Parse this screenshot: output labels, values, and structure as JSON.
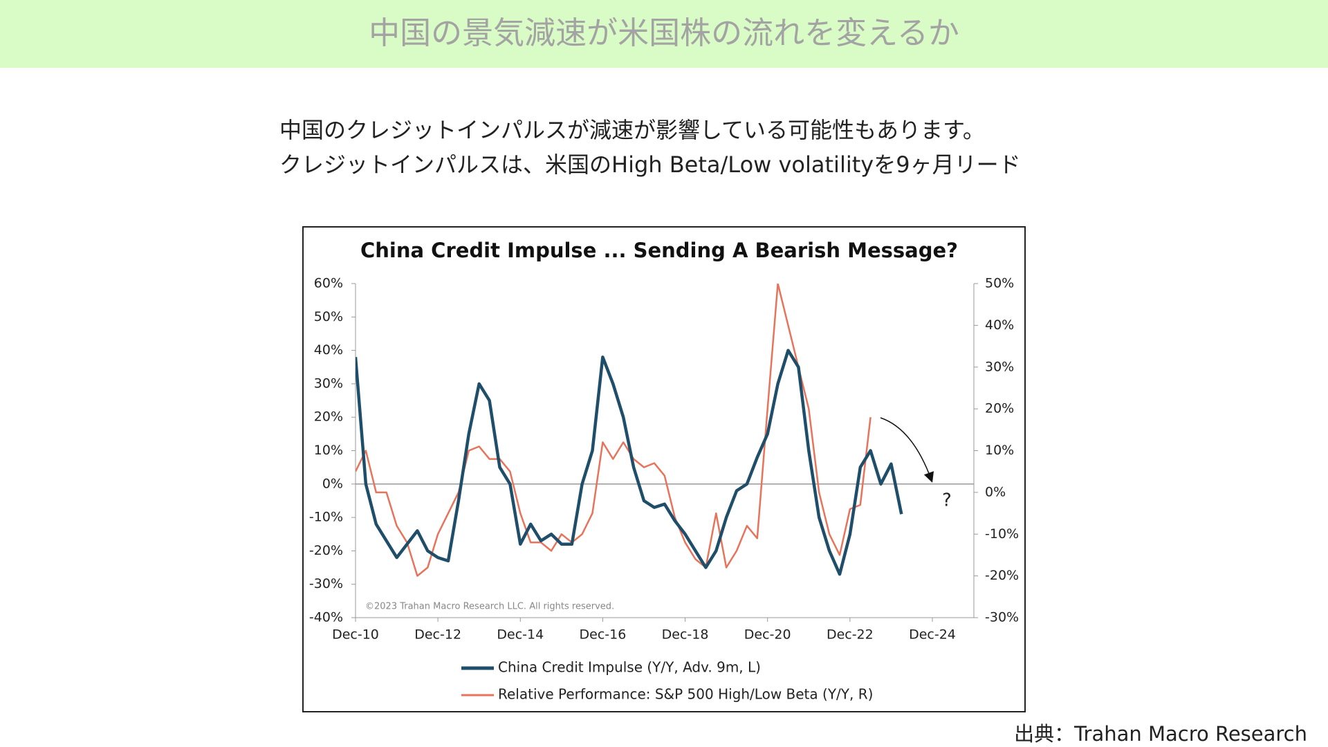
{
  "slide_title": "中国の景気減速が米国株の流れを変えるか",
  "description": [
    "中国のクレジットインパルスが減速が影響している可能性もあります。",
    "クレジットインパルスは、米国のHigh Beta/Low volatilityを9ヶ月リード"
  ],
  "source": "出典：Trahan Macro Research",
  "chart_data": {
    "type": "line",
    "title": "China Credit Impulse ... Sending A Bearish Message?",
    "annotations": [
      "©2023 Trahan Macro Research LLC. All rights reserved.",
      "?"
    ],
    "categories": [
      "Dec-10",
      "Mar-11",
      "Jun-11",
      "Sep-11",
      "Dec-11",
      "Mar-12",
      "Jun-12",
      "Sep-12",
      "Dec-12",
      "Mar-13",
      "Jun-13",
      "Sep-13",
      "Dec-13",
      "Mar-14",
      "Jun-14",
      "Sep-14",
      "Dec-14",
      "Mar-15",
      "Jun-15",
      "Sep-15",
      "Dec-15",
      "Mar-16",
      "Jun-16",
      "Sep-16",
      "Dec-16",
      "Mar-17",
      "Jun-17",
      "Sep-17",
      "Dec-17",
      "Mar-18",
      "Jun-18",
      "Sep-18",
      "Dec-18",
      "Mar-19",
      "Jun-19",
      "Sep-19",
      "Dec-19",
      "Mar-20",
      "Jun-20",
      "Sep-20",
      "Dec-20",
      "Mar-21",
      "Jun-21",
      "Sep-21",
      "Dec-21",
      "Mar-22",
      "Jun-22",
      "Sep-22",
      "Dec-22",
      "Mar-23",
      "Jun-23",
      "Sep-23",
      "Dec-23",
      "Mar-24",
      "Jun-24",
      "Sep-24",
      "Dec-24"
    ],
    "xticks": [
      "Dec-10",
      "Dec-12",
      "Dec-14",
      "Dec-16",
      "Dec-18",
      "Dec-20",
      "Dec-22",
      "Dec-24"
    ],
    "ylim": [
      -40,
      60
    ],
    "yticks": [
      {
        "value": -40,
        "label": "-40%"
      },
      {
        "value": -30,
        "label": "-30%"
      },
      {
        "value": -20,
        "label": "-20%"
      },
      {
        "value": -10,
        "label": "-10%"
      },
      {
        "value": 0,
        "label": "0%"
      },
      {
        "value": 10,
        "label": "10%"
      },
      {
        "value": 20,
        "label": "20%"
      },
      {
        "value": 30,
        "label": "30%"
      },
      {
        "value": 40,
        "label": "40%"
      },
      {
        "value": 50,
        "label": "50%"
      },
      {
        "value": 60,
        "label": "60%"
      }
    ],
    "y2lim": [
      -30,
      50
    ],
    "y2ticks": [
      {
        "value": -30,
        "label": "-30%"
      },
      {
        "value": -20,
        "label": "-20%"
      },
      {
        "value": -10,
        "label": "-10%"
      },
      {
        "value": 0,
        "label": "0%"
      },
      {
        "value": 10,
        "label": "10%"
      },
      {
        "value": 20,
        "label": "20%"
      },
      {
        "value": 30,
        "label": "30%"
      },
      {
        "value": 40,
        "label": "40%"
      },
      {
        "value": 50,
        "label": "50%"
      }
    ],
    "series": [
      {
        "name": "China Credit Impulse (Y/Y, Adv. 9m, L)",
        "color": "#1f4e6b",
        "axis": "y",
        "values": [
          38,
          0,
          -12,
          -17,
          -22,
          -18,
          -14,
          -20,
          -22,
          -23,
          -5,
          15,
          30,
          25,
          5,
          0,
          -18,
          -12,
          -17,
          -15,
          -18,
          -18,
          0,
          10,
          38,
          30,
          20,
          5,
          -5,
          -7,
          -6,
          -11,
          -15,
          -20,
          -25,
          -20,
          -10,
          -2,
          0,
          8,
          15,
          30,
          40,
          35,
          10,
          -10,
          -20,
          -27,
          -15,
          5,
          10,
          0,
          6,
          -9,
          null,
          null,
          null
        ]
      },
      {
        "name": "Relative Performance: S&P 500 High/Low Beta (Y/Y, R)",
        "color": "#e8735a",
        "axis": "y2",
        "values": [
          5,
          10,
          0,
          0,
          -8,
          -12,
          -20,
          -18,
          -10,
          -5,
          0,
          10,
          11,
          8,
          8,
          5,
          -5,
          -12,
          -12,
          -14,
          -10,
          -12,
          -10,
          -5,
          12,
          8,
          12,
          8,
          6,
          7,
          4,
          -6,
          -12,
          -16,
          -18,
          -5,
          -18,
          -14,
          -8,
          -11,
          20,
          50,
          40,
          30,
          20,
          0,
          -10,
          -15,
          -4,
          -3,
          18,
          null,
          null,
          null,
          null,
          null,
          null
        ]
      }
    ]
  }
}
